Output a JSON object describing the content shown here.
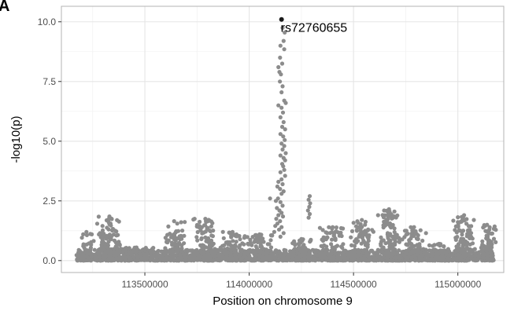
{
  "panel_tag": "A",
  "colors": {
    "points": "#8c8c8c",
    "highlight": "#1a1a1a",
    "grid_major": "#e5e5e5",
    "grid_minor": "#f2f2f2",
    "panel_border": "#b3b3b3"
  },
  "chart_data": {
    "type": "scatter",
    "title": "",
    "xlabel": "Position on chromosome 9",
    "ylabel": "-log10(p)",
    "xlim": [
      113100000,
      115220000
    ],
    "ylim": [
      -0.5,
      10.65
    ],
    "x_ticks": [
      113500000,
      114000000,
      114500000,
      115000000
    ],
    "x_tick_labels": [
      "113500000",
      "114000000",
      "114500000",
      "115000000"
    ],
    "y_ticks": [
      0.0,
      2.5,
      5.0,
      7.5,
      10.0
    ],
    "y_tick_labels": [
      "0.0",
      "2.5",
      "5.0",
      "7.5",
      "10.0"
    ],
    "grid": true,
    "highlight": {
      "label": "rs72760655",
      "x": 114155000,
      "y": 10.1
    },
    "peak_points": [
      [
        114160000,
        9.75
      ],
      [
        114170000,
        9.55
      ],
      [
        114165000,
        9.2
      ],
      [
        114150000,
        9.0
      ],
      [
        114168000,
        8.85
      ],
      [
        114148000,
        8.5
      ],
      [
        114158000,
        8.25
      ],
      [
        114140000,
        8.1
      ],
      [
        114145000,
        7.9
      ],
      [
        114152000,
        7.8
      ],
      [
        114147000,
        7.5
      ],
      [
        114160000,
        7.3
      ],
      [
        114155000,
        7.05
      ],
      [
        114168000,
        6.7
      ],
      [
        114175000,
        6.6
      ],
      [
        114140000,
        6.5
      ],
      [
        114155000,
        6.4
      ],
      [
        114162000,
        6.2
      ],
      [
        114150000,
        6.0
      ],
      [
        114165000,
        5.8
      ],
      [
        114158000,
        5.6
      ],
      [
        114172000,
        5.5
      ],
      [
        114150000,
        5.3
      ],
      [
        114163000,
        5.2
      ],
      [
        114170000,
        5.05
      ],
      [
        114155000,
        4.9
      ],
      [
        114168000,
        4.8
      ],
      [
        114160000,
        4.65
      ],
      [
        114175000,
        4.5
      ],
      [
        114150000,
        4.4
      ],
      [
        114165000,
        4.3
      ],
      [
        114172000,
        4.2
      ],
      [
        114158000,
        4.05
      ],
      [
        114163000,
        3.95
      ],
      [
        114168000,
        3.8
      ],
      [
        114150000,
        3.7
      ],
      [
        114172000,
        3.55
      ],
      [
        114155000,
        3.4
      ],
      [
        114140000,
        3.3
      ],
      [
        114160000,
        3.2
      ],
      [
        114135000,
        3.1
      ],
      [
        114148000,
        3.0
      ],
      [
        114165000,
        2.9
      ],
      [
        114155000,
        2.8
      ],
      [
        114138000,
        2.6
      ],
      [
        114100000,
        2.6
      ],
      [
        114128000,
        2.5
      ],
      [
        114150000,
        2.45
      ],
      [
        114160000,
        2.3
      ],
      [
        114133000,
        2.2
      ],
      [
        114145000,
        2.1
      ],
      [
        114155000,
        2.0
      ],
      [
        114140000,
        1.9
      ],
      [
        114162000,
        1.85
      ],
      [
        114130000,
        1.75
      ],
      [
        114148000,
        1.65
      ],
      [
        114135000,
        1.55
      ],
      [
        114125000,
        1.45
      ],
      [
        114155000,
        1.4
      ],
      [
        114143000,
        1.3
      ],
      [
        114120000,
        1.2
      ],
      [
        114165000,
        1.15
      ],
      [
        114110000,
        1.05
      ],
      [
        114150000,
        1.0
      ],
      [
        114290000,
        2.7
      ],
      [
        114285000,
        2.55
      ],
      [
        114292000,
        2.4
      ],
      [
        114288000,
        2.25
      ],
      [
        114282000,
        2.1
      ],
      [
        114290000,
        1.95
      ],
      [
        114285000,
        1.8
      ]
    ],
    "background_clusters": [
      {
        "center": 113220000,
        "width": 50000,
        "max": 1.2,
        "n": 50
      },
      {
        "center": 113330000,
        "width": 70000,
        "max": 1.85,
        "n": 120
      },
      {
        "center": 113460000,
        "width": 110000,
        "max": 0.55,
        "n": 90
      },
      {
        "center": 113640000,
        "width": 60000,
        "max": 1.65,
        "n": 80
      },
      {
        "center": 113790000,
        "width": 60000,
        "max": 1.75,
        "n": 110
      },
      {
        "center": 113920000,
        "width": 70000,
        "max": 1.2,
        "n": 80
      },
      {
        "center": 114050000,
        "width": 80000,
        "max": 1.1,
        "n": 90
      },
      {
        "center": 114250000,
        "width": 60000,
        "max": 0.9,
        "n": 70
      },
      {
        "center": 114400000,
        "width": 70000,
        "max": 1.4,
        "n": 100
      },
      {
        "center": 114540000,
        "width": 60000,
        "max": 1.7,
        "n": 90
      },
      {
        "center": 114670000,
        "width": 60000,
        "max": 2.15,
        "n": 120
      },
      {
        "center": 114790000,
        "width": 70000,
        "max": 1.4,
        "n": 90
      },
      {
        "center": 114910000,
        "width": 60000,
        "max": 0.7,
        "n": 70
      },
      {
        "center": 115030000,
        "width": 60000,
        "max": 1.9,
        "n": 120
      },
      {
        "center": 115140000,
        "width": 50000,
        "max": 1.5,
        "n": 70
      }
    ],
    "background_baseline": {
      "xmin": 113170000,
      "xmax": 115170000,
      "max": 0.45,
      "n": 1500
    }
  }
}
